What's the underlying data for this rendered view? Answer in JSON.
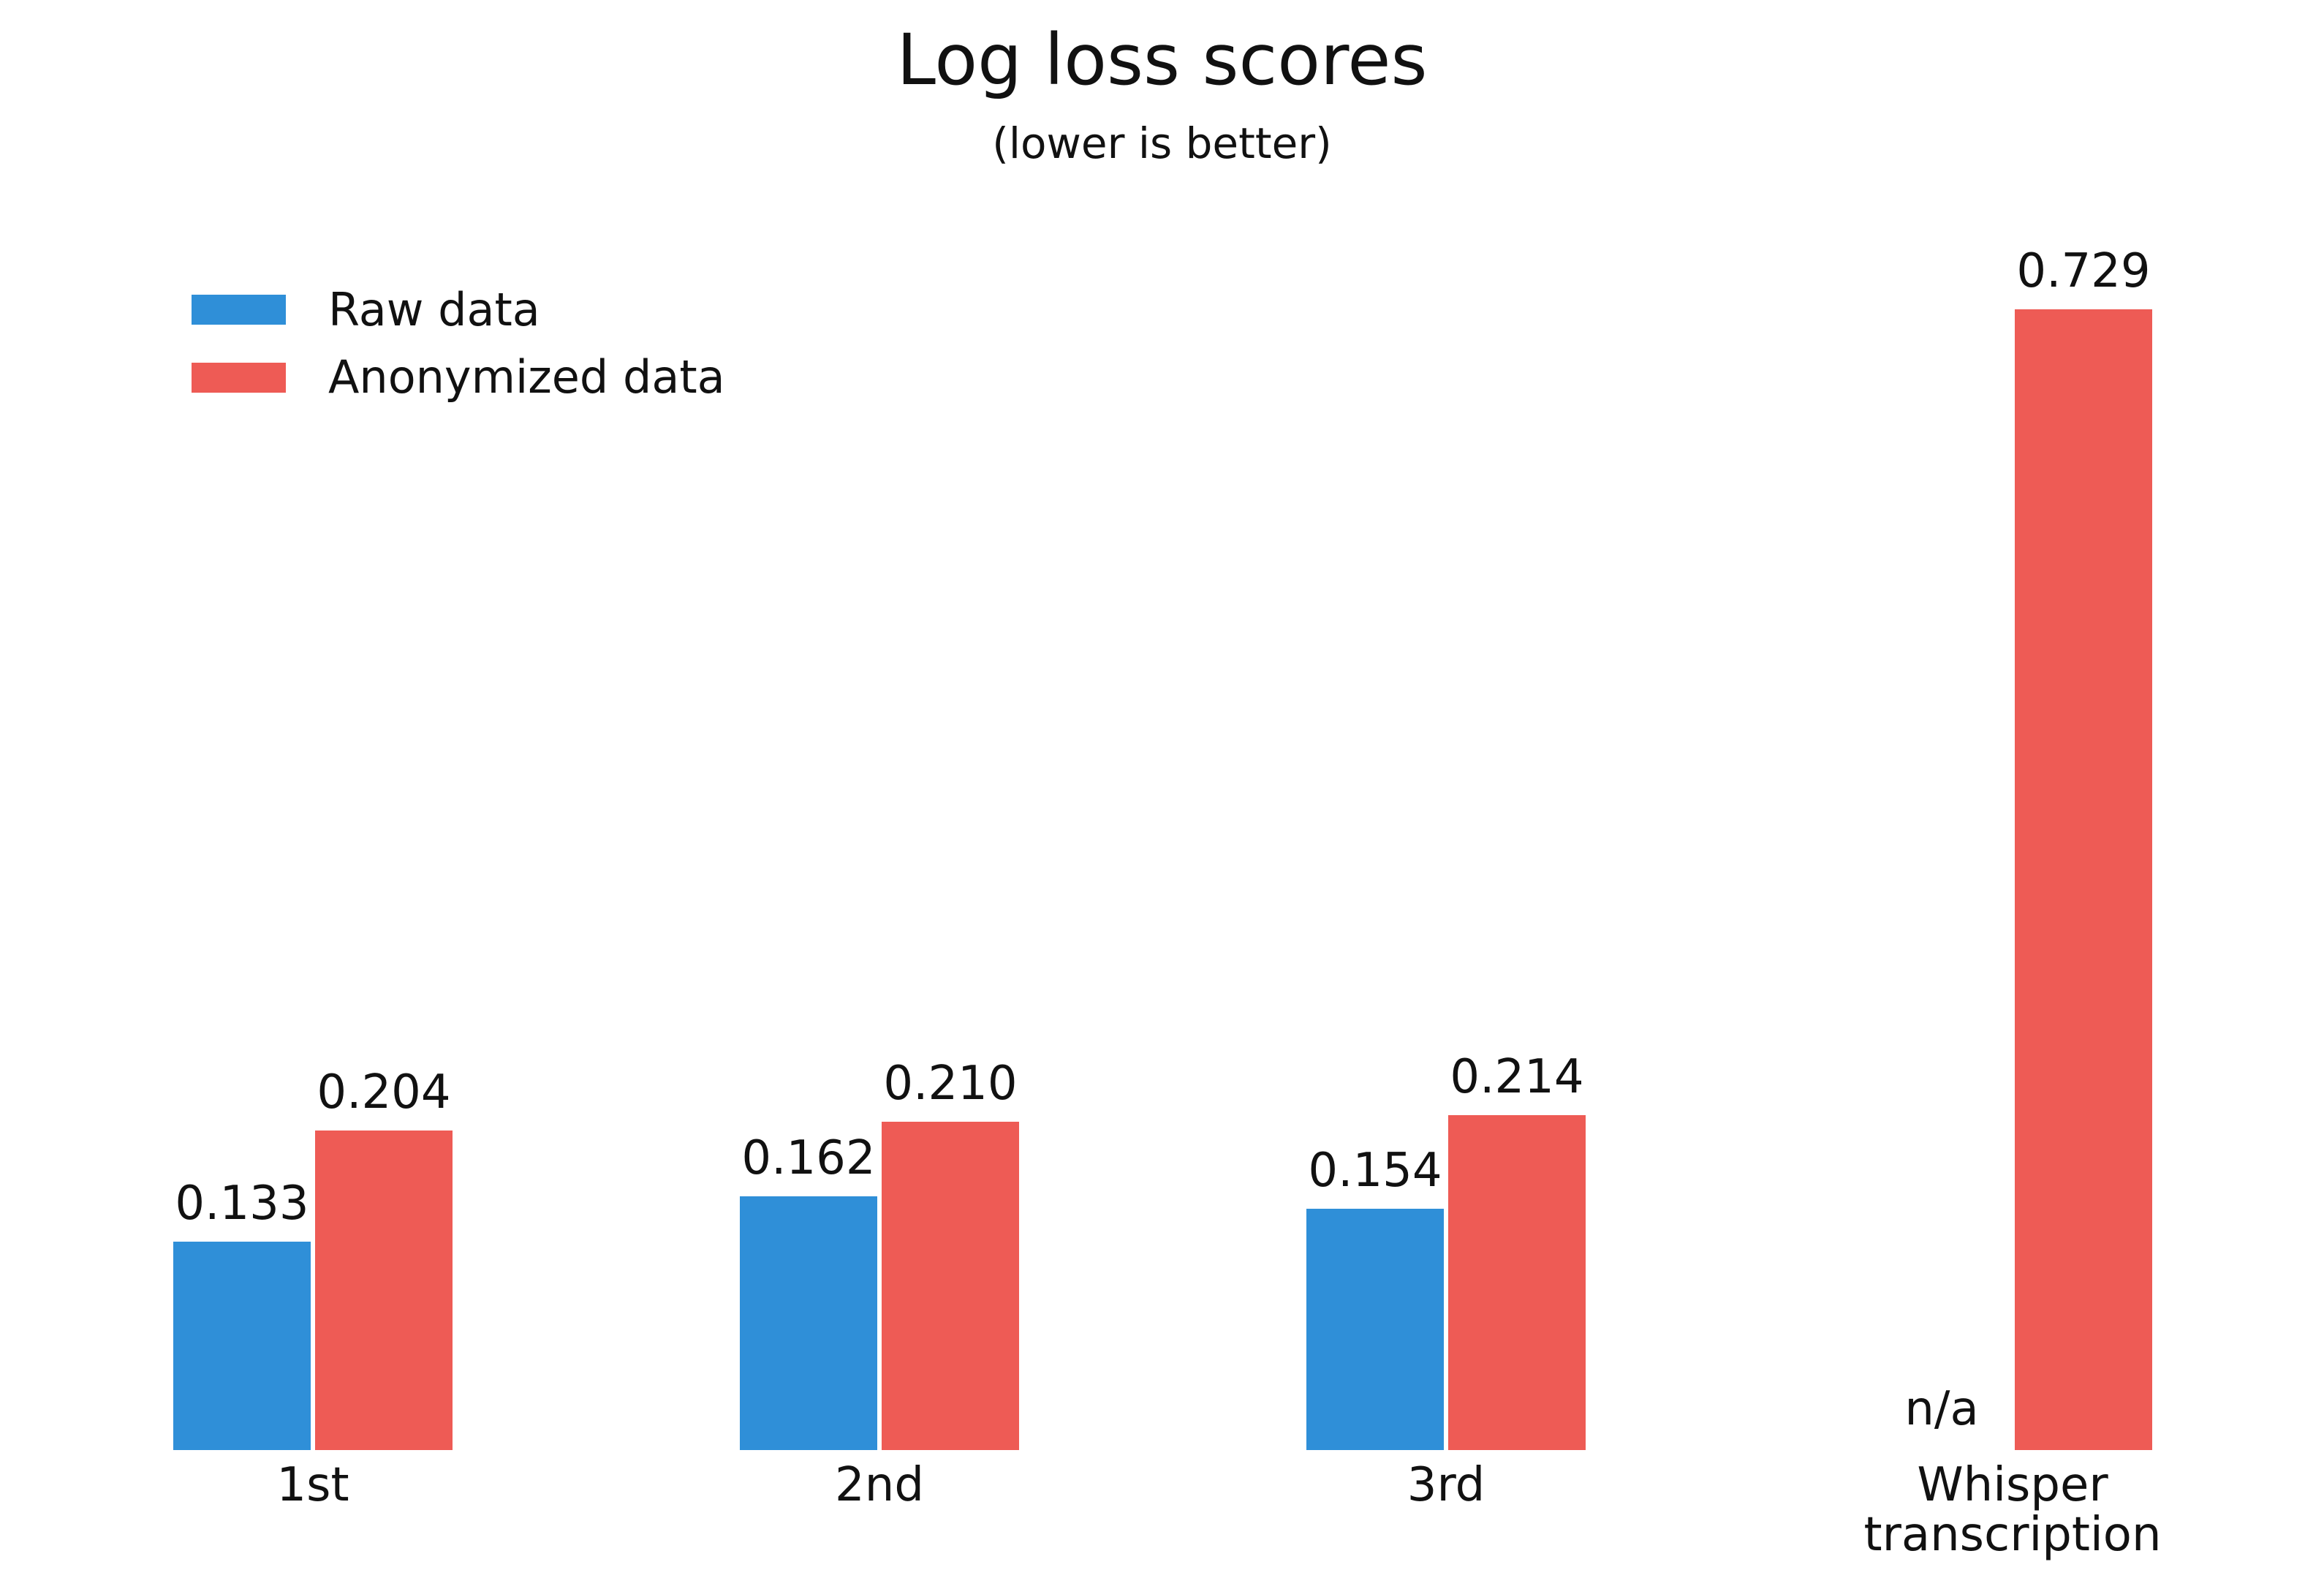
{
  "title": "Log loss scores",
  "subtitle": "(lower is better)",
  "colors": {
    "raw": "#2f8fd8",
    "anonymized": "#ee5b55"
  },
  "legend": [
    {
      "label": "Raw data",
      "color": "#2f8fd8"
    },
    {
      "label": "Anonymized data",
      "color": "#ee5b55"
    }
  ],
  "chart_data": {
    "type": "bar",
    "title": "Log loss scores",
    "subtitle": "(lower is better)",
    "xlabel": "",
    "ylabel": "",
    "categories": [
      "1st",
      "2nd",
      "3rd",
      "Whisper transcription"
    ],
    "series": [
      {
        "name": "Raw data",
        "color": "#2f8fd8",
        "values": [
          0.133,
          0.162,
          0.154,
          null
        ],
        "labels": [
          "0.133",
          "0.162",
          "0.154",
          "n/a"
        ]
      },
      {
        "name": "Anonymized data",
        "color": "#ee5b55",
        "values": [
          0.204,
          0.21,
          0.214,
          0.729
        ],
        "labels": [
          "0.204",
          "0.210",
          "0.214",
          "0.729"
        ]
      }
    ],
    "ylim": [
      0,
      0.75
    ],
    "grid": false,
    "y_axis_visible": false,
    "legend_position": "upper left"
  },
  "groups": [
    {
      "label_lines": [
        "1st"
      ],
      "raw_label": "0.133",
      "anon_label": "0.204"
    },
    {
      "label_lines": [
        "2nd"
      ],
      "raw_label": "0.162",
      "anon_label": "0.210"
    },
    {
      "label_lines": [
        "3rd"
      ],
      "raw_label": "0.154",
      "anon_label": "0.214"
    },
    {
      "label_lines": [
        "Whisper",
        "transcription"
      ],
      "raw_label": "n/a",
      "anon_label": "0.729"
    }
  ]
}
